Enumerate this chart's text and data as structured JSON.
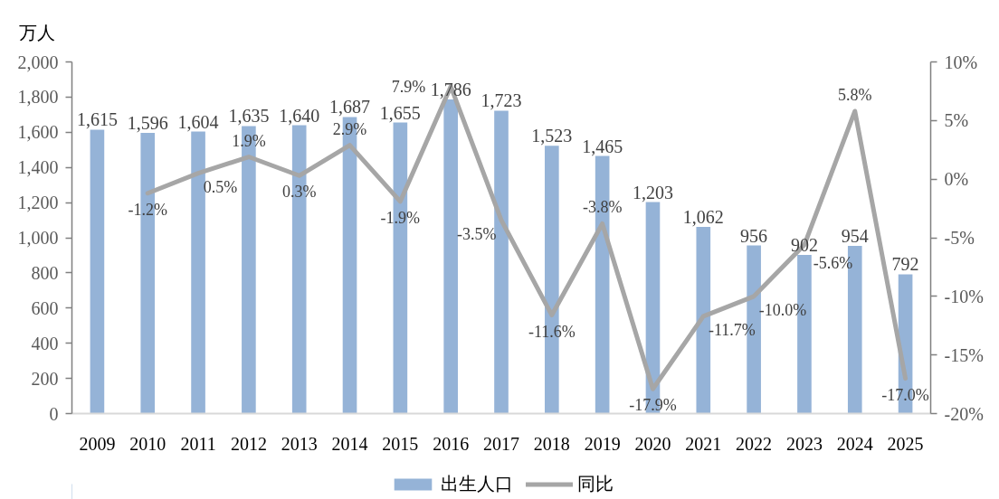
{
  "chart_data": {
    "type": "bar",
    "ylabel": "万人",
    "categories": [
      "2009",
      "2010",
      "2011",
      "2012",
      "2013",
      "2014",
      "2015",
      "2016",
      "2017",
      "2018",
      "2019",
      "2020",
      "2021",
      "2022",
      "2023",
      "2024",
      "2025"
    ],
    "series": [
      {
        "name": "出生人口",
        "color": "#95b3d7",
        "values": [
          1615,
          1596,
          1604,
          1635,
          1640,
          1687,
          1655,
          1786,
          1723,
          1523,
          1465,
          1203,
          1062,
          956,
          902,
          954,
          792
        ],
        "value_labels": [
          "1,615",
          "1,596",
          "1,604",
          "1,635",
          "1,640",
          "1,687",
          "1,655",
          "1,786",
          "1,723",
          "1,523",
          "1,465",
          "1,203",
          "1,062",
          "956",
          "902",
          "954",
          "792"
        ]
      },
      {
        "name": "同比",
        "type": "line",
        "axis": "y2",
        "color": "#a6a6a6",
        "values": [
          null,
          -1.2,
          0.5,
          1.9,
          0.3,
          2.9,
          -1.9,
          7.9,
          -3.5,
          -11.6,
          -3.8,
          -17.9,
          -11.7,
          -10.0,
          -5.6,
          5.8,
          -17.0
        ],
        "value_labels": [
          null,
          "-1.2%",
          "0.5%",
          "1.9%",
          "0.3%",
          "2.9%",
          "-1.9%",
          "7.9%",
          "-3.5%",
          "-11.6%",
          "-3.8%",
          "-17.9%",
          "-11.7%",
          "-10.0%",
          "-5.6%",
          "5.8%",
          "-17.0%"
        ]
      }
    ],
    "ylim": [
      0,
      2000
    ],
    "yticks": [
      0,
      200,
      400,
      600,
      800,
      {
        "value": 1000,
        "label": "1,000"
      },
      {
        "value": 1200,
        "label": "1,200"
      },
      {
        "value": 1400,
        "label": "1,400"
      },
      {
        "value": 1600,
        "label": "1,600"
      },
      {
        "value": 1800,
        "label": "1,800"
      },
      {
        "value": 2000,
        "label": "2,000"
      }
    ],
    "y2lim": [
      -20,
      10
    ],
    "y2ticks": [
      {
        "value": -20,
        "label": "-20%"
      },
      {
        "value": -15,
        "label": "-15%"
      },
      {
        "value": -10,
        "label": "-10%"
      },
      {
        "value": -5,
        "label": "-5%"
      },
      {
        "value": 0,
        "label": "0%"
      },
      {
        "value": 5,
        "label": "5%"
      },
      {
        "value": 10,
        "label": "10%"
      }
    ],
    "legend": "bottom"
  }
}
